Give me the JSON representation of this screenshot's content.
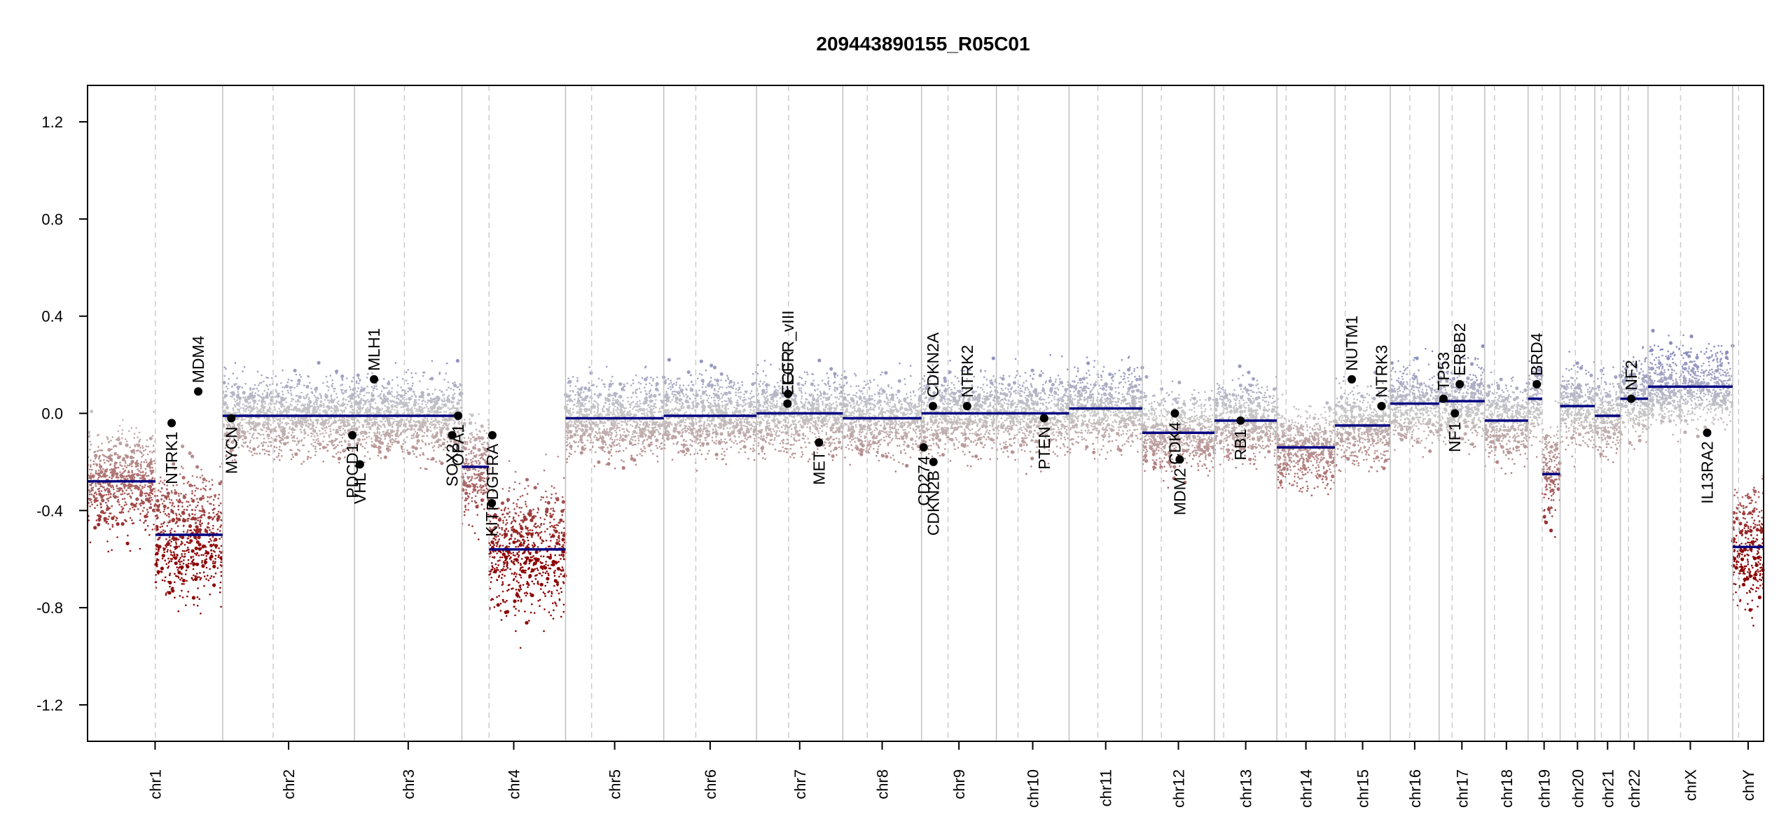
{
  "chart_data": {
    "type": "scatter",
    "title": "209443890155_R05C01",
    "xlabel": "",
    "ylabel": "",
    "ylim": [
      -1.35,
      1.35
    ],
    "yticks": [
      "1.2",
      "0.8",
      "0.4",
      "0.0",
      "-0.4",
      "-0.8",
      "-1.2"
    ],
    "ytick_values": [
      1.2,
      0.8,
      0.4,
      0.0,
      -0.4,
      -0.8,
      -1.2
    ],
    "grid": "vertical chromosome boundaries (solid) and centromeres (dashed)",
    "colors": {
      "segment": "#000080",
      "gain": "#8a8cc0",
      "neutral": "#c8c8c8",
      "loss": "#8b0000",
      "boundary": "#c0c0c0",
      "centromere": "#cccccc",
      "gene_point": "#000000"
    },
    "chromosomes": [
      {
        "name": "chr1",
        "start": 0,
        "end": 249,
        "centro": 125
      },
      {
        "name": "chr2",
        "start": 249,
        "end": 492,
        "centro": 342
      },
      {
        "name": "chr3",
        "start": 492,
        "end": 690,
        "centro": 584
      },
      {
        "name": "chr4",
        "start": 690,
        "end": 881,
        "centro": 740
      },
      {
        "name": "chr5",
        "start": 881,
        "end": 1062,
        "centro": 929
      },
      {
        "name": "chr6",
        "start": 1062,
        "end": 1233,
        "centro": 1121
      },
      {
        "name": "chr7",
        "start": 1233,
        "end": 1392,
        "centro": 1292
      },
      {
        "name": "chr8",
        "start": 1392,
        "end": 1537,
        "centro": 1437
      },
      {
        "name": "chr9",
        "start": 1537,
        "end": 1675,
        "centro": 1586
      },
      {
        "name": "chr10",
        "start": 1675,
        "end": 1809,
        "centro": 1715
      },
      {
        "name": "chr11",
        "start": 1809,
        "end": 1944,
        "centro": 1862
      },
      {
        "name": "chr12",
        "start": 1944,
        "end": 2077,
        "centro": 1979
      },
      {
        "name": "chr13",
        "start": 2077,
        "end": 2192,
        "centro": 2094
      },
      {
        "name": "chr14",
        "start": 2192,
        "end": 2299,
        "centro": 2209
      },
      {
        "name": "chr15",
        "start": 2299,
        "end": 2401,
        "centro": 2318
      },
      {
        "name": "chr16",
        "start": 2401,
        "end": 2491,
        "centro": 2437
      },
      {
        "name": "chr17",
        "start": 2491,
        "end": 2575,
        "centro": 2515
      },
      {
        "name": "chr18",
        "start": 2575,
        "end": 2655,
        "centro": 2593
      },
      {
        "name": "chr19",
        "start": 2655,
        "end": 2714,
        "centro": 2681
      },
      {
        "name": "chr20",
        "start": 2714,
        "end": 2778,
        "centro": 2742
      },
      {
        "name": "chr21",
        "start": 2778,
        "end": 2825,
        "centro": 2790
      },
      {
        "name": "chr22",
        "start": 2825,
        "end": 2876,
        "centro": 2840
      },
      {
        "name": "chrX",
        "start": 2876,
        "end": 3032,
        "centro": 2936
      },
      {
        "name": "chrY",
        "start": 3032,
        "end": 3089,
        "centro": 3043
      }
    ],
    "segments": [
      {
        "x0": 0,
        "x1": 125,
        "y": -0.28
      },
      {
        "x0": 125,
        "x1": 249,
        "y": -0.5
      },
      {
        "x0": 249,
        "x1": 492,
        "y": -0.01
      },
      {
        "x0": 492,
        "x1": 690,
        "y": -0.01
      },
      {
        "x0": 690,
        "x1": 740,
        "y": -0.22
      },
      {
        "x0": 740,
        "x1": 881,
        "y": -0.56
      },
      {
        "x0": 881,
        "x1": 1062,
        "y": -0.02
      },
      {
        "x0": 1062,
        "x1": 1233,
        "y": -0.01
      },
      {
        "x0": 1233,
        "x1": 1392,
        "y": 0.0
      },
      {
        "x0": 1392,
        "x1": 1537,
        "y": -0.02
      },
      {
        "x0": 1537,
        "x1": 1675,
        "y": 0.0
      },
      {
        "x0": 1675,
        "x1": 1809,
        "y": 0.0
      },
      {
        "x0": 1809,
        "x1": 1944,
        "y": 0.02
      },
      {
        "x0": 1944,
        "x1": 2077,
        "y": -0.08
      },
      {
        "x0": 2077,
        "x1": 2192,
        "y": -0.03
      },
      {
        "x0": 2192,
        "x1": 2299,
        "y": -0.14
      },
      {
        "x0": 2299,
        "x1": 2401,
        "y": -0.05
      },
      {
        "x0": 2401,
        "x1": 2491,
        "y": 0.04
      },
      {
        "x0": 2491,
        "x1": 2575,
        "y": 0.05
      },
      {
        "x0": 2575,
        "x1": 2655,
        "y": -0.03
      },
      {
        "x0": 2655,
        "x1": 2681,
        "y": 0.06
      },
      {
        "x0": 2681,
        "x1": 2714,
        "y": -0.25
      },
      {
        "x0": 2714,
        "x1": 2778,
        "y": 0.03
      },
      {
        "x0": 2778,
        "x1": 2825,
        "y": -0.01
      },
      {
        "x0": 2825,
        "x1": 2876,
        "y": 0.06
      },
      {
        "x0": 2876,
        "x1": 3032,
        "y": 0.11
      },
      {
        "x0": 3032,
        "x1": 3089,
        "y": -0.55
      }
    ],
    "genes": [
      {
        "name": "NTRK1",
        "x": 155,
        "y": -0.04
      },
      {
        "name": "MDM4",
        "x": 204,
        "y": 0.09
      },
      {
        "name": "MYCN",
        "x": 265,
        "y": -0.02
      },
      {
        "name": "PDCD1",
        "x": 488,
        "y": -0.09
      },
      {
        "name": "VHL",
        "x": 502,
        "y": -0.21
      },
      {
        "name": "MLH1",
        "x": 528,
        "y": 0.14
      },
      {
        "name": "SOX2",
        "x": 672,
        "y": -0.09
      },
      {
        "name": "OPA1",
        "x": 683,
        "y": -0.01
      },
      {
        "name": "KIT",
        "x": 745,
        "y": -0.37
      },
      {
        "name": "PDGFRA",
        "x": 746,
        "y": -0.09
      },
      {
        "name": "EGFR",
        "x": 1290,
        "y": 0.04
      },
      {
        "name": "EGFR_vIII",
        "x": 1291,
        "y": 0.08
      },
      {
        "name": "MET",
        "x": 1348,
        "y": -0.12
      },
      {
        "name": "CD274",
        "x": 1541,
        "y": -0.14
      },
      {
        "name": "CDKN2A",
        "x": 1558,
        "y": 0.03
      },
      {
        "name": "CDKN2B",
        "x": 1559,
        "y": -0.2
      },
      {
        "name": "NTRK2",
        "x": 1621,
        "y": 0.03
      },
      {
        "name": "PTEN",
        "x": 1763,
        "y": -0.02
      },
      {
        "name": "MDM2",
        "x": 2013,
        "y": -0.19
      },
      {
        "name": "CDK4",
        "x": 2004,
        "y": 0.0
      },
      {
        "name": "RB1",
        "x": 2125,
        "y": -0.03
      },
      {
        "name": "NUTM1",
        "x": 2330,
        "y": 0.14
      },
      {
        "name": "NTRK3",
        "x": 2385,
        "y": 0.03
      },
      {
        "name": "TP53",
        "x": 2499,
        "y": 0.06
      },
      {
        "name": "NF1",
        "x": 2520,
        "y": 0.0
      },
      {
        "name": "ERBB2",
        "x": 2529,
        "y": 0.12
      },
      {
        "name": "BRD4",
        "x": 2671,
        "y": 0.12
      },
      {
        "name": "NF2",
        "x": 2845,
        "y": 0.06
      },
      {
        "name": "IL13RA2",
        "x": 2985,
        "y": -0.08
      }
    ]
  }
}
